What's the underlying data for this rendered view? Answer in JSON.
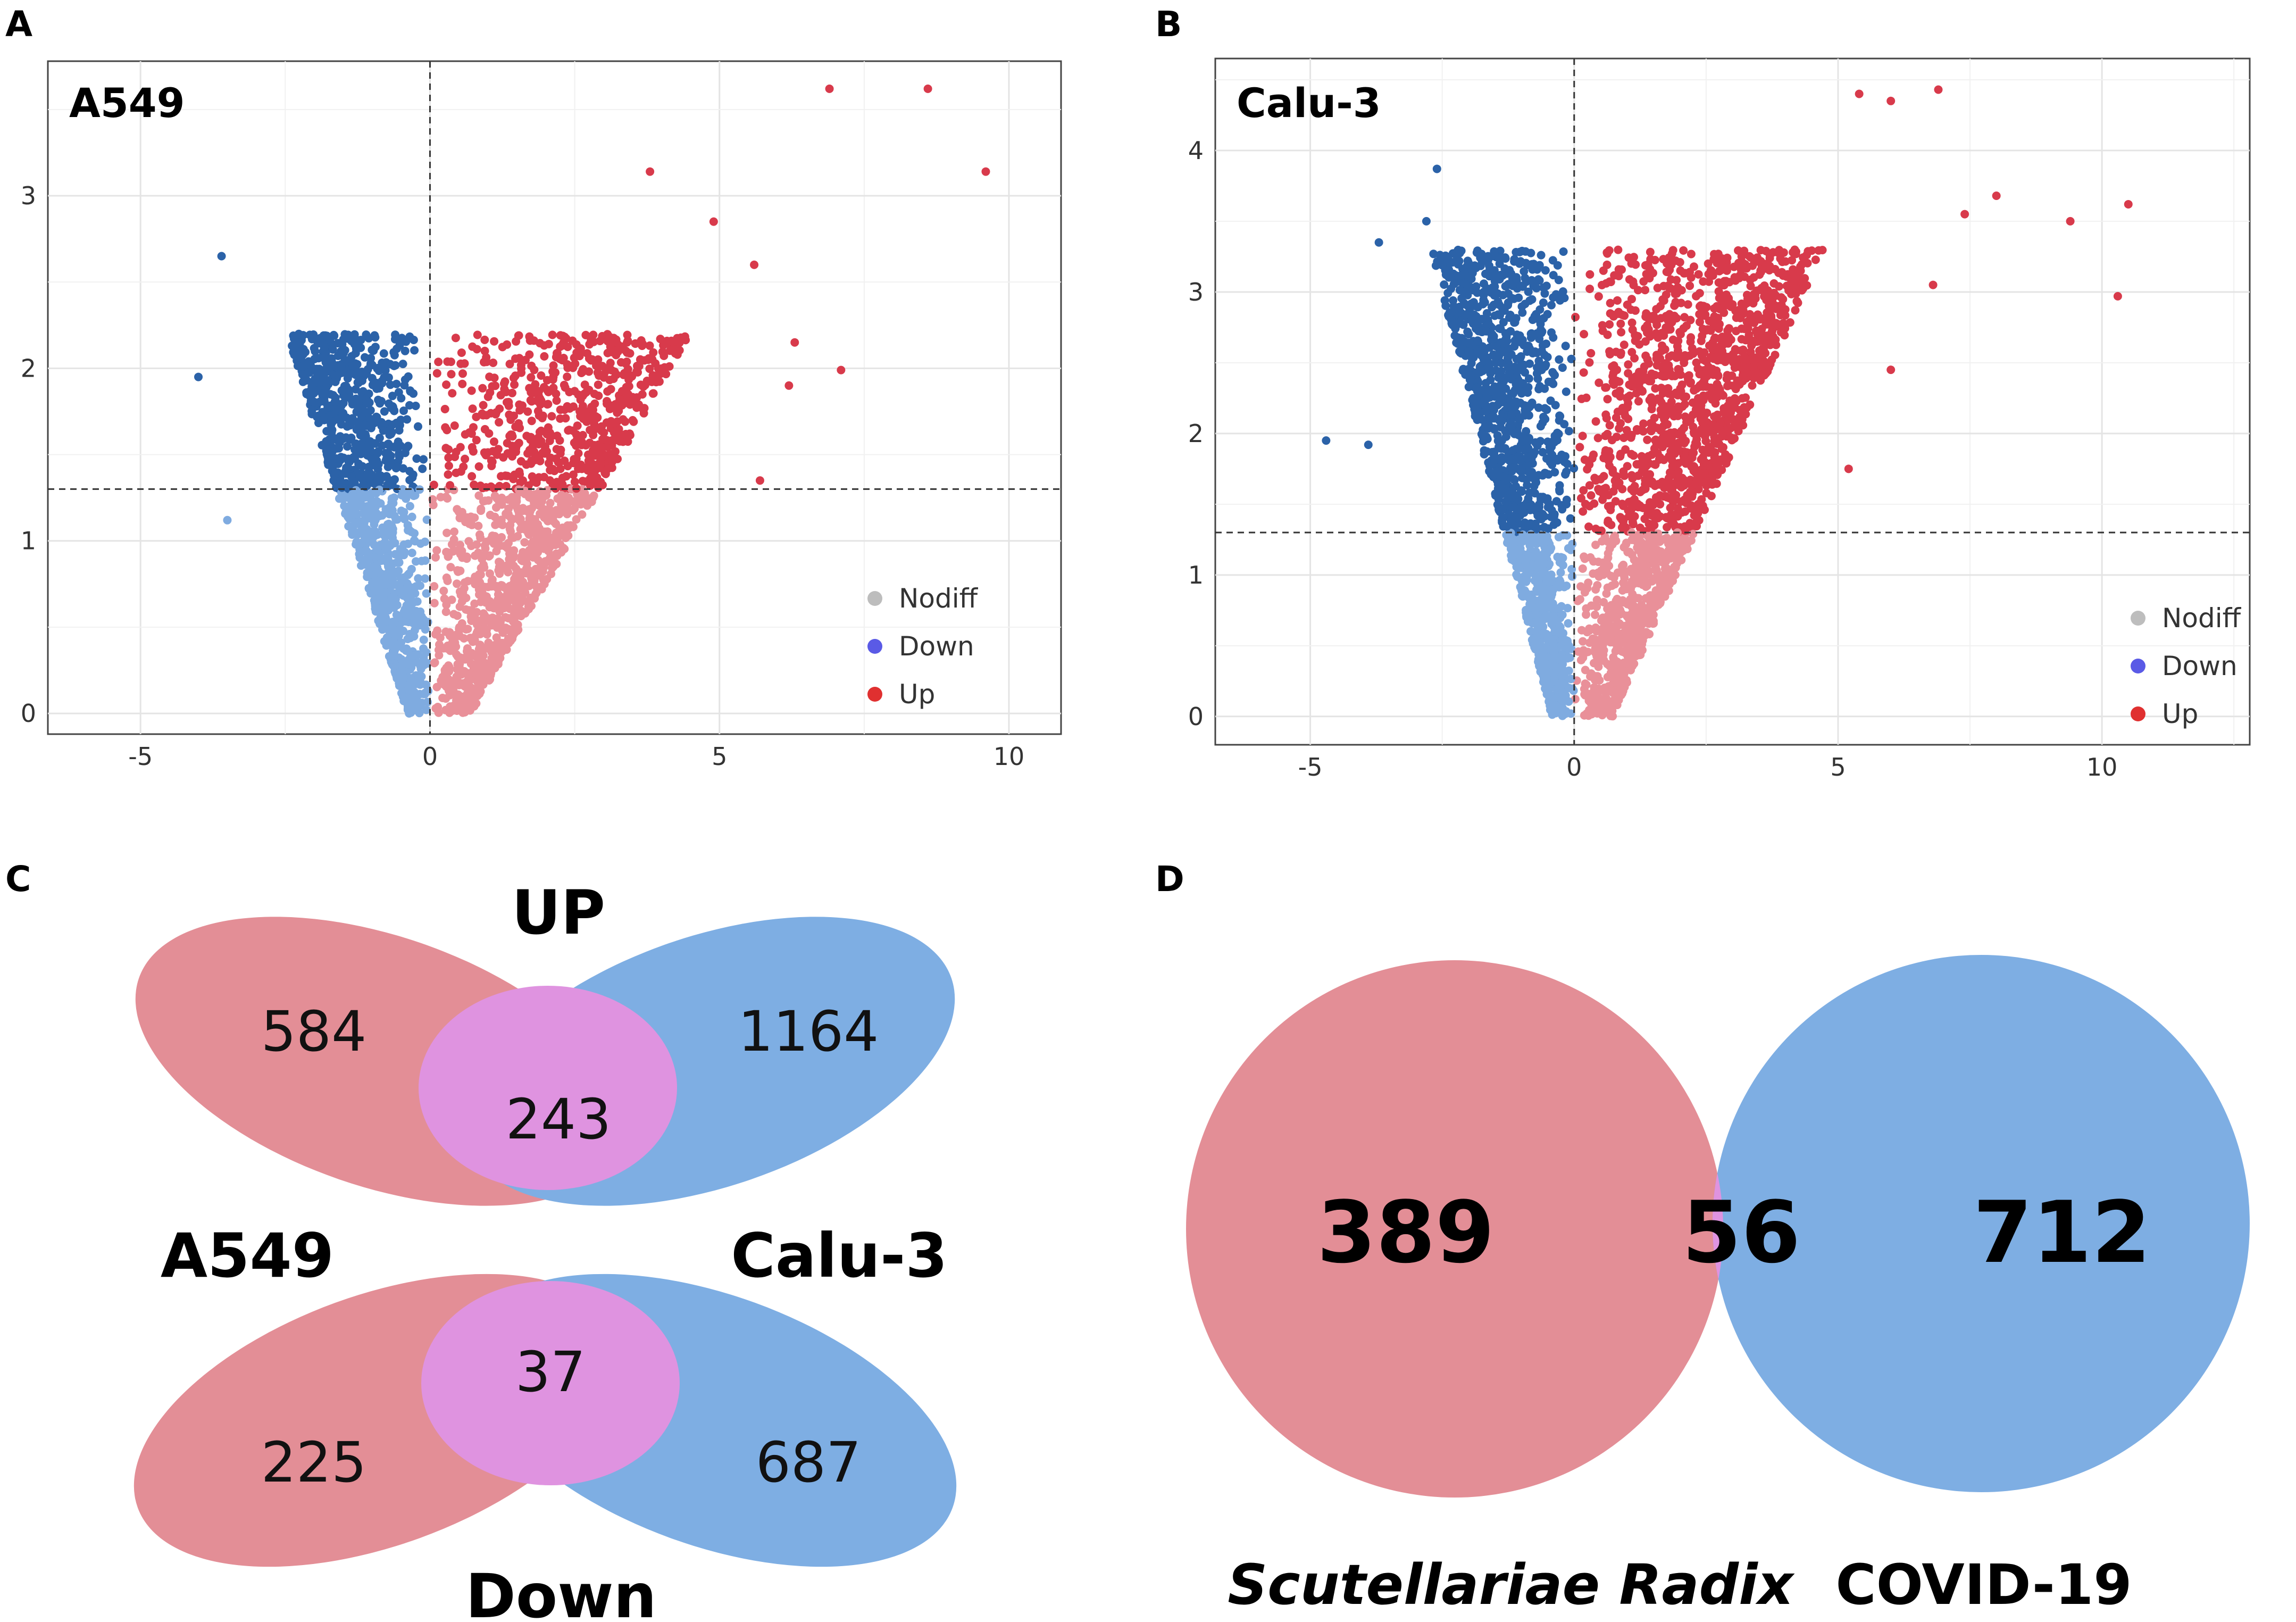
{
  "panels": {
    "a": "A",
    "b": "B",
    "c": "C",
    "d": "D"
  },
  "legend": {
    "nodiff": "Nodiff",
    "down": "Down",
    "up": "Up"
  },
  "colors": {
    "nodiff": "#bdbdbd",
    "down_sig": "#2b62a8",
    "down_ns": "#7fabe0",
    "up_sig": "#d83a4b",
    "up_ns": "#e99099",
    "leg_down": "#5a5ae6",
    "leg_up": "#e03030",
    "venn_red": "#e38e96",
    "venn_blue": "#7eaee3",
    "venn_overlap": "#df93e0"
  },
  "chart_data": [
    {
      "type": "scatter",
      "title": "A549",
      "xlabel": "",
      "ylabel": "",
      "xlim": [
        -6.6,
        10.9
      ],
      "ylim": [
        -0.12,
        3.78
      ],
      "xticks": [
        -5,
        0,
        5,
        10
      ],
      "yticks": [
        0,
        1,
        2,
        3
      ],
      "tick_labels_x": [
        "-5",
        "0",
        "5",
        "10"
      ],
      "tick_labels_y": [
        "0",
        "1",
        "2",
        "3"
      ],
      "threshold_x": 0,
      "threshold_y": 1.3,
      "grid": true,
      "legend": [
        "Nodiff",
        "Down",
        "Up"
      ],
      "legend_position": "bottom-right",
      "max_y": 2.2,
      "right_spread": 4.0,
      "left_spread": 2.2,
      "outliers": [
        [
          6.9,
          3.62
        ],
        [
          8.6,
          3.62
        ],
        [
          9.6,
          3.14
        ],
        [
          3.8,
          3.14
        ],
        [
          4.9,
          2.85
        ],
        [
          -3.6,
          2.65
        ],
        [
          -4.0,
          1.95
        ],
        [
          -3.5,
          1.12
        ],
        [
          5.6,
          2.6
        ],
        [
          6.3,
          2.15
        ],
        [
          7.1,
          1.99
        ],
        [
          6.2,
          1.9
        ],
        [
          5.7,
          1.35
        ]
      ],
      "seed": 11,
      "n_points": 2600
    },
    {
      "type": "scatter",
      "title": "Calu-3",
      "xlabel": "",
      "ylabel": "",
      "xlim": [
        -6.8,
        12.8
      ],
      "ylim": [
        -0.2,
        4.65
      ],
      "xticks": [
        -5,
        0,
        5,
        10
      ],
      "yticks": [
        0,
        1,
        2,
        3,
        4
      ],
      "tick_labels_x": [
        "-5",
        "0",
        "5",
        "10"
      ],
      "tick_labels_y": [
        "0",
        "1",
        "2",
        "3",
        "4"
      ],
      "threshold_x": 0,
      "threshold_y": 1.3,
      "grid": true,
      "legend": [
        "Nodiff",
        "Down",
        "Up"
      ],
      "legend_position": "bottom-right",
      "max_y": 3.3,
      "right_spread": 4.2,
      "left_spread": 2.4,
      "outliers": [
        [
          6.9,
          4.43
        ],
        [
          5.4,
          4.4
        ],
        [
          6.0,
          4.35
        ],
        [
          8.0,
          3.68
        ],
        [
          7.4,
          3.55
        ],
        [
          9.4,
          3.5
        ],
        [
          10.5,
          3.62
        ],
        [
          10.3,
          2.97
        ],
        [
          6.8,
          3.05
        ],
        [
          -2.6,
          3.87
        ],
        [
          -2.8,
          3.5
        ],
        [
          -3.7,
          3.35
        ],
        [
          -4.7,
          1.95
        ],
        [
          -3.9,
          1.92
        ],
        [
          5.2,
          1.75
        ],
        [
          6.0,
          2.45
        ]
      ],
      "seed": 23,
      "n_points": 3300
    },
    {
      "type": "venn",
      "top": {
        "title": "UP",
        "left_only": "584",
        "overlap": "243",
        "right_only": "1164"
      },
      "bottom": {
        "title": "Down",
        "left_only": "225",
        "overlap": "37",
        "right_only": "687"
      },
      "left_label": "A549",
      "right_label": "Calu-3"
    },
    {
      "type": "venn",
      "left_only": "389",
      "overlap": "56",
      "right_only": "712",
      "left_label": "Scutellariae Radix",
      "right_label": "COVID-19"
    }
  ]
}
